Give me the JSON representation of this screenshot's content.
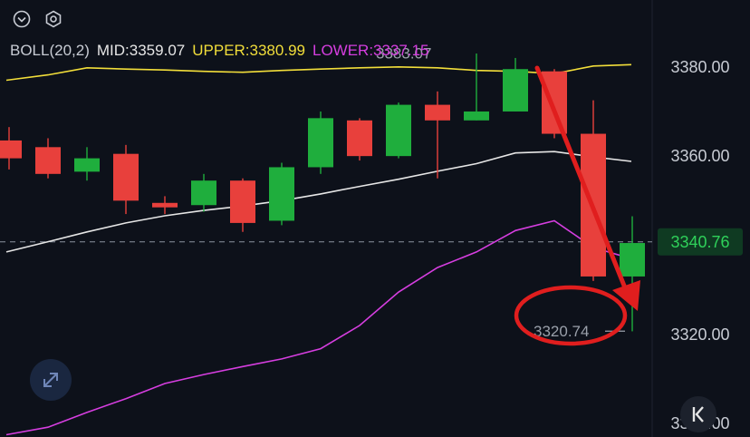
{
  "indicator": {
    "name": "BOLL(20,2)",
    "mid_label": "MID:3359.07",
    "upper_label": "UPPER:3380.99",
    "lower_label": "LOWER:3337.15"
  },
  "colors": {
    "background": "#0d111a",
    "up": "#1fae3d",
    "down": "#e8403c",
    "mid": "#e6e6e6",
    "upper": "#f2de3a",
    "lower": "#d63ee0",
    "axis_text": "#c8ccd4",
    "annotation": "#e01e1e",
    "current_price_bg": "#0f3a22",
    "current_price_text": "#2fd15a"
  },
  "icons": {
    "chevron": "chevron-down-icon",
    "settings": "hexagon-settings-icon",
    "expand": "expand-arrows-icon",
    "jump": "jump-to-latest-icon"
  },
  "chart_data": {
    "type": "candlestick",
    "y_ticks": [
      "3380.00",
      "3360.00",
      "3340.00",
      "3320.00",
      "3300.00"
    ],
    "y_tick_values": [
      3380,
      3360,
      3340,
      3320,
      3300
    ],
    "ylim": [
      3297,
      3395
    ],
    "current_price": {
      "value": 3340.76,
      "label": "3340.76"
    },
    "high_marker": {
      "value": 3383.07,
      "label": "3383.07"
    },
    "low_marker": {
      "value": 3320.74,
      "label": "3320.74"
    },
    "candles": [
      {
        "open": 3363.5,
        "close": 3359.5,
        "high": 3366.5,
        "low": 3357.0
      },
      {
        "open": 3362.0,
        "close": 3356.0,
        "high": 3364.0,
        "low": 3355.0
      },
      {
        "open": 3356.5,
        "close": 3359.5,
        "high": 3362.0,
        "low": 3354.5
      },
      {
        "open": 3360.5,
        "close": 3350.0,
        "high": 3362.5,
        "low": 3347.0
      },
      {
        "open": 3349.5,
        "close": 3348.5,
        "high": 3351.0,
        "low": 3347.0
      },
      {
        "open": 3349.0,
        "close": 3354.5,
        "high": 3356.0,
        "low": 3347.5
      },
      {
        "open": 3354.5,
        "close": 3345.0,
        "high": 3355.0,
        "low": 3343.0
      },
      {
        "open": 3345.5,
        "close": 3357.5,
        "high": 3358.5,
        "low": 3344.5
      },
      {
        "open": 3357.5,
        "close": 3368.5,
        "high": 3370.0,
        "low": 3356.0
      },
      {
        "open": 3368.0,
        "close": 3360.0,
        "high": 3368.5,
        "low": 3359.0
      },
      {
        "open": 3360.0,
        "close": 3371.5,
        "high": 3372.0,
        "low": 3359.5
      },
      {
        "open": 3371.5,
        "close": 3368.0,
        "high": 3374.5,
        "low": 3355.0
      },
      {
        "open": 3368.0,
        "close": 3370.0,
        "high": 3383.0,
        "low": 3368.0
      },
      {
        "open": 3370.0,
        "close": 3379.5,
        "high": 3382.0,
        "low": 3370.0
      },
      {
        "open": 3379.0,
        "close": 3365.0,
        "high": 3379.5,
        "low": 3364.0
      },
      {
        "open": 3365.0,
        "close": 3333.0,
        "high": 3372.5,
        "low": 3332.0
      },
      {
        "open": 3333.0,
        "close": 3340.5,
        "high": 3346.5,
        "low": 3320.7
      }
    ],
    "series": [
      {
        "name": "UPPER",
        "values": [
          3377.0,
          3378.2,
          3379.8,
          3379.5,
          3379.3,
          3379.0,
          3378.8,
          3379.2,
          3379.5,
          3379.8,
          3380.0,
          3379.8,
          3379.2,
          3379.0,
          3378.5,
          3380.2,
          3380.5
        ]
      },
      {
        "name": "MID",
        "values": [
          3338.5,
          3340.8,
          3343.0,
          3345.0,
          3346.6,
          3347.8,
          3348.8,
          3350.0,
          3351.5,
          3353.2,
          3354.8,
          3356.6,
          3358.3,
          3360.7,
          3361.0,
          3359.8,
          3358.8
        ]
      },
      {
        "name": "LOWER",
        "values": [
          3297.5,
          3299.2,
          3302.5,
          3305.6,
          3309.0,
          3311.0,
          3312.8,
          3314.5,
          3316.8,
          3322.0,
          3329.5,
          3335.0,
          3338.5,
          3343.3,
          3345.5,
          3339.5,
          3337.0
        ]
      }
    ]
  }
}
